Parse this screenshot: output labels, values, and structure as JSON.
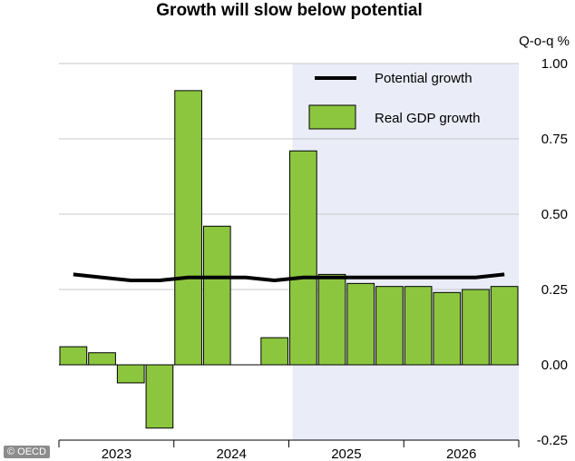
{
  "chart_data": {
    "type": "bar",
    "title": "Growth will slow below potential",
    "yunit": "Q-o-q %",
    "ylim": [
      -0.25,
      1.0
    ],
    "yticks": [
      "1.00",
      "0.75",
      "0.50",
      "0.25",
      "0.00",
      "-0.25"
    ],
    "ytick_values": [
      1.0,
      0.75,
      0.5,
      0.25,
      0.0,
      -0.25
    ],
    "grid": true,
    "year_labels": [
      "2023",
      "2024",
      "2025",
      "2026"
    ],
    "categories": [
      "2023 Q1",
      "2023 Q2",
      "2023 Q3",
      "2023 Q4",
      "2024 Q1",
      "2024 Q2",
      "2024 Q3",
      "2024 Q4",
      "2025 Q1",
      "2025 Q2",
      "2025 Q3",
      "2025 Q4",
      "2026 Q1",
      "2026 Q2",
      "2026 Q3",
      "2026 Q4"
    ],
    "forecast_start_index": 9,
    "series": [
      {
        "name": "Real GDP growth",
        "kind": "bar",
        "color": "#8cc63f",
        "values": [
          0.06,
          0.04,
          -0.06,
          -0.21,
          0.91,
          0.46,
          0.0,
          0.09,
          0.71,
          0.3,
          0.27,
          0.26,
          0.26,
          0.24,
          0.25,
          0.26
        ]
      },
      {
        "name": "Potential growth",
        "kind": "line",
        "color": "#000000",
        "values": [
          0.3,
          0.29,
          0.28,
          0.28,
          0.29,
          0.29,
          0.29,
          0.28,
          0.29,
          0.29,
          0.29,
          0.29,
          0.29,
          0.29,
          0.29,
          0.3
        ]
      }
    ],
    "legend": {
      "placement": "top-right",
      "potential_label": "Potential growth",
      "real_label": "Real GDP growth"
    },
    "forecast_shading_color": "#eaecf8"
  },
  "credit": "© OECD"
}
